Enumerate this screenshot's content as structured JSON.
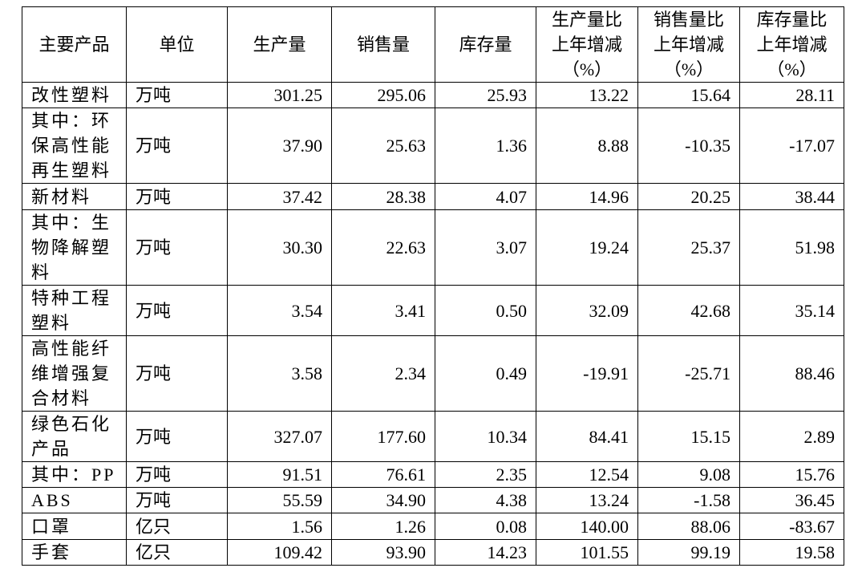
{
  "table": {
    "header": [
      "主要产品",
      "单位",
      "生产量",
      "销售量",
      "库存量",
      "生产量比\n上年增减\n（%）",
      "销售量比\n上年增减\n（%）",
      "库存量比\n上年增减\n（%）"
    ],
    "rows": [
      [
        "改性塑料",
        "万吨",
        "301.25",
        "295.06",
        "25.93",
        "13.22",
        "15.64",
        "28.11"
      ],
      [
        "其中：环保高性能再生塑料",
        "万吨",
        "37.90",
        "25.63",
        "1.36",
        "8.88",
        "-10.35",
        "-17.07"
      ],
      [
        "新材料",
        "万吨",
        "37.42",
        "28.38",
        "4.07",
        "14.96",
        "20.25",
        "38.44"
      ],
      [
        "其中：生物降解塑料",
        "万吨",
        "30.30",
        "22.63",
        "3.07",
        "19.24",
        "25.37",
        "51.98"
      ],
      [
        "特种工程塑料",
        "万吨",
        "3.54",
        "3.41",
        "0.50",
        "32.09",
        "42.68",
        "35.14"
      ],
      [
        "高性能纤维增强复合材料",
        "万吨",
        "3.58",
        "2.34",
        "0.49",
        "-19.91",
        "-25.71",
        "88.46"
      ],
      [
        "绿色石化产品",
        "万吨",
        "327.07",
        "177.60",
        "10.34",
        "84.41",
        "15.15",
        "2.89"
      ],
      [
        "其中：PP",
        "万吨",
        "91.51",
        "76.61",
        "2.35",
        "12.54",
        "9.08",
        "15.76"
      ],
      [
        "ABS",
        "万吨",
        "55.59",
        "34.90",
        "4.38",
        "13.24",
        "-1.58",
        "36.45"
      ],
      [
        "口罩",
        "亿只",
        "1.56",
        "1.26",
        "0.08",
        "140.00",
        "88.06",
        "-83.67"
      ],
      [
        "手套",
        "亿只",
        "109.42",
        "93.90",
        "14.23",
        "101.55",
        "99.19",
        "19.58"
      ]
    ]
  }
}
